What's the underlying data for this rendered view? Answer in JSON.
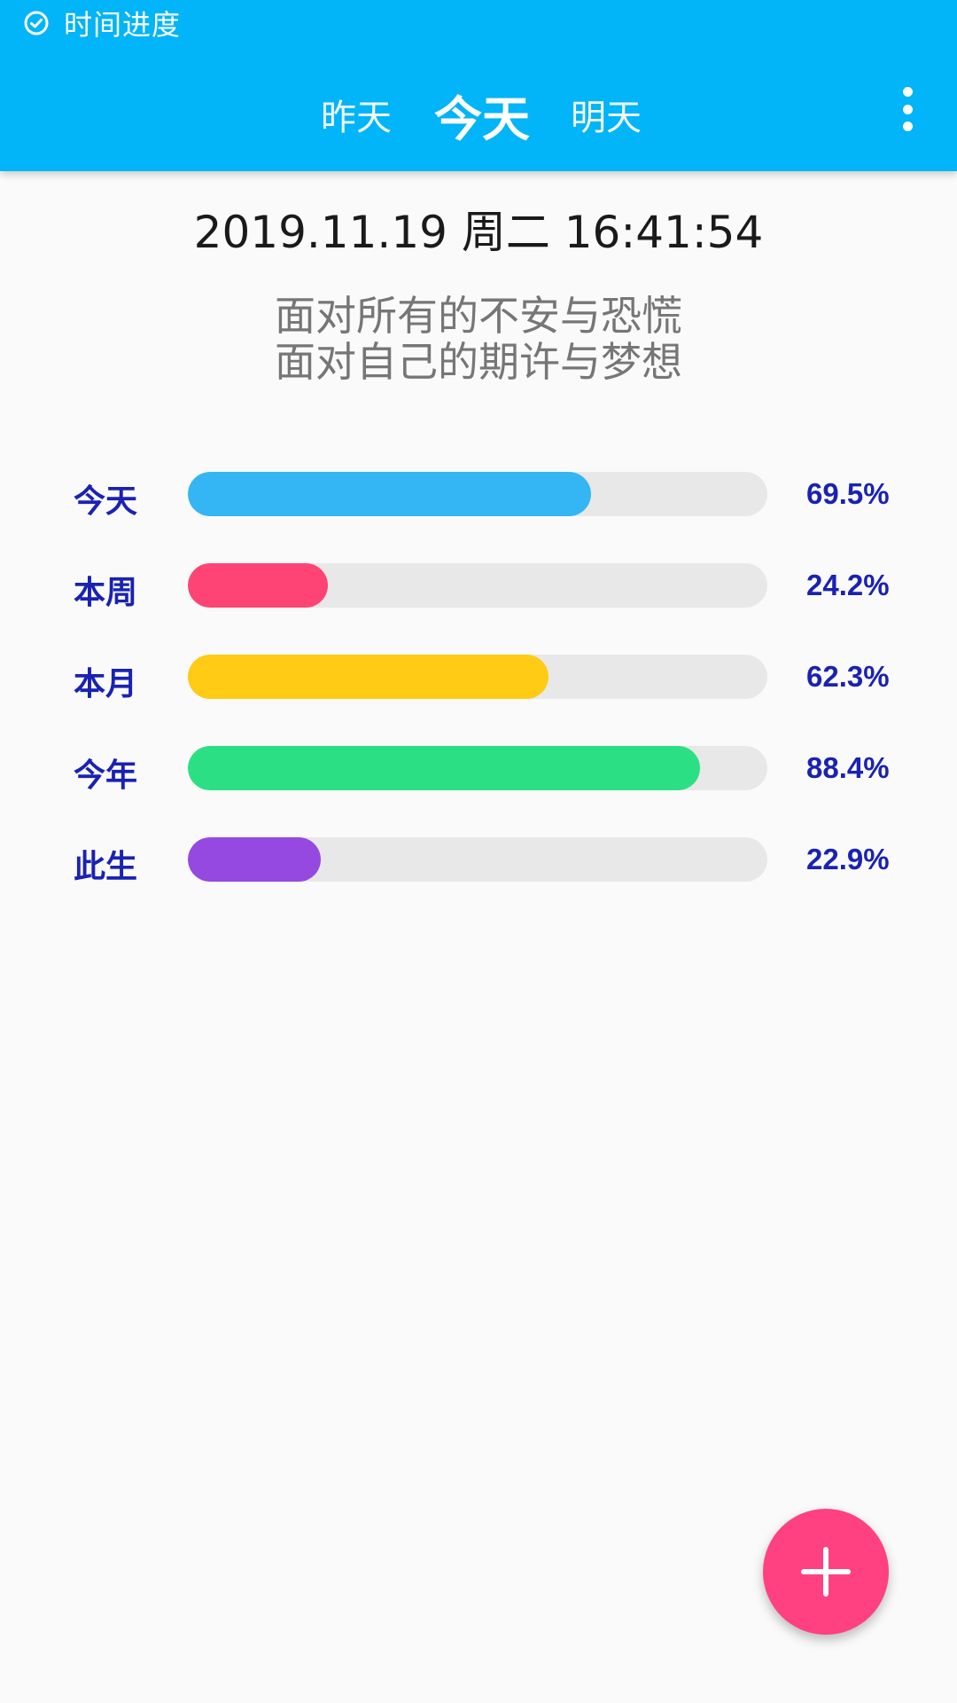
{
  "status_bar": {
    "icon": "check-circle-icon",
    "title": "时间进度"
  },
  "header": {
    "tabs": [
      {
        "label": "昨天",
        "active": false
      },
      {
        "label": "今天",
        "active": true
      },
      {
        "label": "明天",
        "active": false
      }
    ],
    "menu_icon": "more-vertical-icon"
  },
  "datetime": "2019.11.19 周二 16:41:54",
  "motto": {
    "line1": "面对所有的不安与恐慌",
    "line2": "面对自己的期许与梦想"
  },
  "progress": [
    {
      "label": "今天",
      "percent": 69.5,
      "value_text": "69.5%",
      "color": "#33B6F3"
    },
    {
      "label": "本周",
      "percent": 24.2,
      "value_text": "24.2%",
      "color": "#FE4474"
    },
    {
      "label": "本月",
      "percent": 62.3,
      "value_text": "62.3%",
      "color": "#FFCB15"
    },
    {
      "label": "今年",
      "percent": 88.4,
      "value_text": "88.4%",
      "color": "#2BE084"
    },
    {
      "label": "此生",
      "percent": 22.9,
      "value_text": "22.9%",
      "color": "#9549E0"
    }
  ],
  "fab": {
    "icon": "plus-icon",
    "color": "#FF4081"
  }
}
